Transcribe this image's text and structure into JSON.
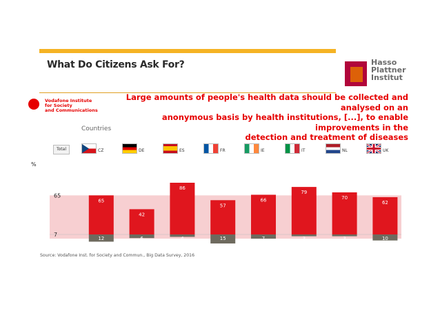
{
  "slide": {
    "title": "What Do Citizens Ask For?",
    "headline_lines": [
      "Large amounts of people's health data should be collected and analysed on an",
      "anonymous basis by health institutions, [...], to enable improvements in the",
      "detection and treatment of diseases"
    ],
    "countries_label": "Countries",
    "total_label": "Total",
    "percent_label": "%",
    "source": "Source: Vodafone Inst. for Society and Commun., Big Data Survey, 2016",
    "hpi_lines": [
      "Hasso",
      "Plattner",
      "Institut"
    ],
    "vodafone_lines": [
      "Vodafone Institute",
      "for Society",
      "and Communications"
    ]
  },
  "flags": [
    "CZ",
    "DE",
    "ES",
    "FR",
    "IE",
    "IT",
    "NL",
    "UK"
  ],
  "colors": {
    "accent_bar": "#f5b324",
    "agree_bar": "#e0161e",
    "disagree_bar": "#6e6a5e",
    "band": "#f7cfd1",
    "headline": "#e60000"
  },
  "chart_data": {
    "type": "bar",
    "categories": [
      "Total",
      "CZ",
      "DE",
      "ES",
      "FR",
      "IE",
      "IT",
      "NL",
      "UK"
    ],
    "series": [
      {
        "values": [
          65,
          65,
          42,
          86,
          57,
          66,
          79,
          70,
          62
        ]
      },
      {
        "values": [
          7,
          12,
          6,
          4,
          15,
          7,
          3,
          3,
          10
        ]
      }
    ],
    "y_tick_labels": [
      "65",
      "7"
    ],
    "data_labels": [
      [
        "",
        "65",
        "42",
        "86",
        "57",
        "66",
        "79",
        "70",
        "62"
      ],
      [
        "",
        "12",
        "6",
        "4",
        "15",
        "7",
        "3",
        "3",
        "10"
      ]
    ]
  }
}
